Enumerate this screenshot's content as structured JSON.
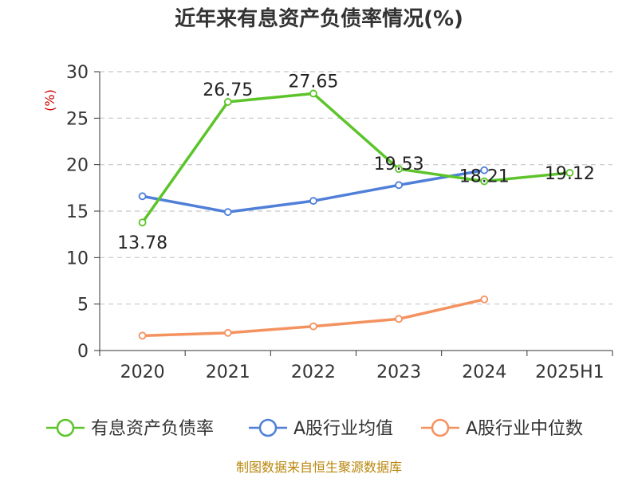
{
  "chart_data": {
    "type": "line",
    "title": "近年来有息资产负债率情况(%)",
    "ylabel": "(%)",
    "categories": [
      "2020",
      "2021",
      "2022",
      "2023",
      "2024",
      "2025H1"
    ],
    "ylim": [
      0,
      30
    ],
    "yticks": [
      0,
      5,
      10,
      15,
      20,
      25,
      30
    ],
    "grid": true,
    "legend": "bottom",
    "series": [
      {
        "name": "有息资产负债率",
        "color": "#5cc42a",
        "values": [
          13.78,
          26.75,
          27.65,
          19.53,
          18.21,
          19.12
        ],
        "labels": [
          "13.78",
          "26.75",
          "27.65",
          "19.53",
          "18.21",
          "19.12"
        ]
      },
      {
        "name": "A股行业均值",
        "color": "#4f7fd8",
        "values": [
          16.6,
          14.9,
          16.1,
          17.8,
          19.4,
          null
        ]
      },
      {
        "name": "A股行业中位数",
        "color": "#f4925f",
        "values": [
          1.6,
          1.9,
          2.6,
          3.4,
          5.5,
          null
        ]
      }
    ]
  },
  "source": "制图数据来自恒生聚源数据库"
}
